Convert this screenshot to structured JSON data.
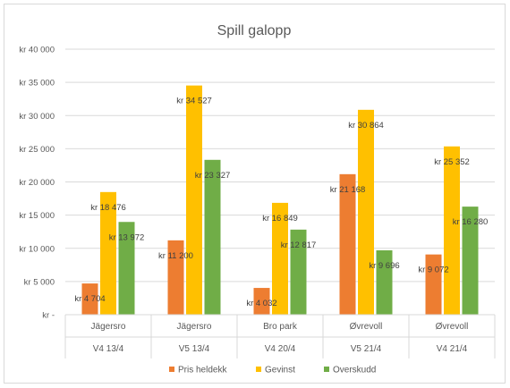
{
  "chart_data": {
    "type": "bar",
    "title": "Spill galopp",
    "categories": [
      {
        "level1": "Jägersro",
        "level2": "V4 13/4"
      },
      {
        "level1": "Jägersro",
        "level2": "V5 13/4"
      },
      {
        "level1": "Bro park",
        "level2": "V4 20/4"
      },
      {
        "level1": "Øvrevoll",
        "level2": "V5 21/4"
      },
      {
        "level1": "Øvrevoll",
        "level2": "V4 21/4"
      }
    ],
    "series": [
      {
        "name": "Pris heldekk",
        "color": "#ED7D31",
        "values": [
          4704,
          11200,
          4032,
          21168,
          9072
        ],
        "labels": [
          "kr 4 704",
          "kr 11 200",
          "kr 4 032",
          "kr 21 168",
          "kr 9 072"
        ]
      },
      {
        "name": "Gevinst",
        "color": "#FFC000",
        "values": [
          18476,
          34527,
          16849,
          30864,
          25352
        ],
        "labels": [
          "kr 18 476",
          "kr 34 527",
          "kr 16 849",
          "kr 30 864",
          "kr 25 352"
        ]
      },
      {
        "name": "Overskudd",
        "color": "#70AD47",
        "values": [
          13972,
          23327,
          12817,
          9696,
          16280
        ],
        "labels": [
          "kr 13 972",
          "kr 23 327",
          "kr 12 817",
          "kr 9 696",
          "kr 16 280"
        ]
      }
    ],
    "ylim": [
      0,
      40000
    ],
    "yticks": [
      0,
      5000,
      10000,
      15000,
      20000,
      25000,
      30000,
      35000,
      40000
    ],
    "ytick_labels": [
      "kr -",
      "kr 5 000",
      "kr 10 000",
      "kr 15 000",
      "kr 20 000",
      "kr 25 000",
      "kr 30 000",
      "kr 35 000",
      "kr 40 000"
    ],
    "grid": true,
    "legend": "bottom"
  }
}
